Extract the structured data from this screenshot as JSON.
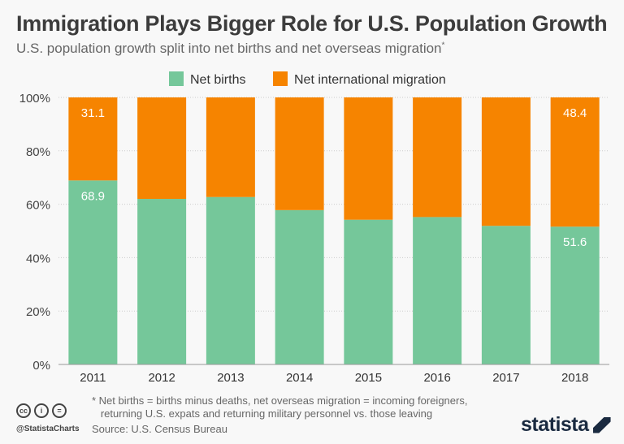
{
  "chart_data": {
    "type": "bar",
    "stacked": true,
    "title": "Immigration Plays Bigger Role for U.S. Population Growth",
    "subtitle": "U.S. population growth split into net births and net overseas migration",
    "subtitle_marker": "*",
    "categories": [
      "2011",
      "2012",
      "2013",
      "2014",
      "2015",
      "2016",
      "2017",
      "2018"
    ],
    "series": [
      {
        "name": "Net births",
        "color": "#75c79a",
        "values": [
          68.9,
          62.0,
          62.7,
          57.8,
          54.2,
          55.2,
          51.9,
          51.6
        ]
      },
      {
        "name": "Net international migration",
        "color": "#f68400",
        "values": [
          31.1,
          38.0,
          37.3,
          42.2,
          45.8,
          44.8,
          48.1,
          48.4
        ]
      }
    ],
    "data_labels": [
      {
        "category": "2011",
        "series": "Net births",
        "text": "68.9"
      },
      {
        "category": "2011",
        "series": "Net international migration",
        "text": "31.1"
      },
      {
        "category": "2018",
        "series": "Net births",
        "text": "51.6"
      },
      {
        "category": "2018",
        "series": "Net international migration",
        "text": "48.4"
      }
    ],
    "ylim": [
      0,
      100
    ],
    "yticks": [
      "0%",
      "20%",
      "40%",
      "60%",
      "80%",
      "100%"
    ],
    "grid": true,
    "legend": "top-center"
  },
  "footer": {
    "note_line1": "* Net births = births minus deaths, net overseas migration = incoming foreigners,",
    "note_line2": "   returning U.S. expats and returning military personnel vs. those leaving",
    "source": "Source: U.S. Census Bureau",
    "handle": "@StatistaCharts",
    "logo": "statista",
    "license_icons": [
      "cc",
      "by",
      "nd"
    ]
  }
}
